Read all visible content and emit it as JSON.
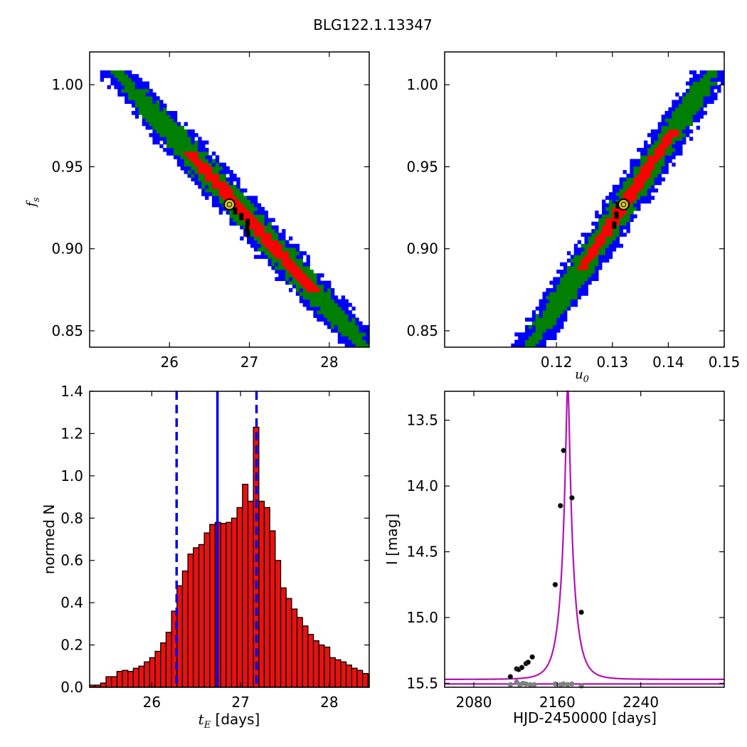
{
  "title": "BLG122.1.13347",
  "colors": {
    "sigma3": "#0000ff",
    "sigma2": "#007f00",
    "sigma1": "#ff0000",
    "accepted": "#000000",
    "best_marker_face": "#d4c22b",
    "hist_bar": "#e8110f",
    "hist_lines": "#0000ee",
    "model_curve": "#b412b4",
    "data_points": "#000000",
    "residuals": "#808080"
  },
  "chart_data": [
    {
      "id": "tE_vs_fs",
      "type": "heatmap",
      "xlim": [
        25.0,
        28.5
      ],
      "ylim": [
        0.84,
        1.02
      ],
      "xticks": [
        "26",
        "27",
        "28"
      ],
      "xtick_values": [
        26,
        27,
        28
      ],
      "yticks": [
        "0.85",
        "0.90",
        "0.95",
        "1.00"
      ],
      "ytick_values": [
        0.85,
        0.9,
        0.95,
        1.0
      ],
      "ylabel": "f_s",
      "ylabel_main": "f",
      "ylabel_sub": "s",
      "xlabel": "",
      "contours": {
        "levels": [
          "3-sigma",
          "2-sigma",
          "1-sigma"
        ],
        "center": [
          26.82,
          0.924
        ],
        "axis_start": [
          25.4,
          1.005
        ],
        "axis_end": [
          28.4,
          0.842
        ],
        "widths_x": [
          0.28,
          0.19,
          0.09
        ]
      },
      "best_fit": [
        26.75,
        0.927
      ]
    },
    {
      "id": "u0_vs_fs",
      "type": "heatmap",
      "xlim": [
        0.1,
        0.15
      ],
      "ylim": [
        0.84,
        1.02
      ],
      "xticks": [
        "0.12",
        "0.13",
        "0.14",
        "0.15"
      ],
      "xtick_values": [
        0.12,
        0.13,
        0.14,
        0.15
      ],
      "yticks": [
        "0.85",
        "0.90",
        "0.95",
        "1.00"
      ],
      "ytick_values": [
        0.85,
        0.9,
        0.95,
        1.0
      ],
      "xlabel": "u_0",
      "xlabel_main": "u",
      "xlabel_sub": "0",
      "contours": {
        "levels": [
          "3-sigma",
          "2-sigma",
          "1-sigma"
        ],
        "axis_start": [
          0.1155,
          0.842
        ],
        "axis_end": [
          0.1475,
          1.006
        ],
        "widths_x": [
          0.0036,
          0.0024,
          0.0011
        ]
      },
      "best_fit": [
        0.132,
        0.927
      ]
    },
    {
      "id": "tE_histogram",
      "type": "bar",
      "xlim": [
        25.3,
        28.45
      ],
      "ylim": [
        0.0,
        1.4
      ],
      "xticks": [
        "26",
        "27",
        "28"
      ],
      "xtick_values": [
        26,
        27,
        28
      ],
      "yticks": [
        "0.0",
        "0.2",
        "0.4",
        "0.6",
        "0.8",
        "1.0",
        "1.2",
        "1.4"
      ],
      "ytick_values": [
        0.0,
        0.2,
        0.4,
        0.6,
        0.8,
        1.0,
        1.2,
        1.4
      ],
      "xlabel_main": "t",
      "xlabel_sub": "E",
      "xlabel_rest": " [days]",
      "ylabel": "normed N",
      "bin_start": 25.3,
      "bin_width": 0.0615,
      "values": [
        0.01,
        0.01,
        0.02,
        0.05,
        0.05,
        0.075,
        0.08,
        0.075,
        0.09,
        0.1,
        0.12,
        0.14,
        0.17,
        0.21,
        0.26,
        0.36,
        0.48,
        0.55,
        0.63,
        0.66,
        0.675,
        0.73,
        0.77,
        0.78,
        0.775,
        0.78,
        0.8,
        0.85,
        0.96,
        0.88,
        1.23,
        0.88,
        0.85,
        0.74,
        0.6,
        0.47,
        0.42,
        0.37,
        0.33,
        0.29,
        0.25,
        0.22,
        0.2,
        0.19,
        0.14,
        0.13,
        0.12,
        0.105,
        0.09,
        0.08,
        0.065,
        0.06,
        0.06,
        0.055,
        0.055,
        0.05,
        0.04,
        0.04,
        0.035,
        0.03,
        0.02
      ],
      "median": 26.74,
      "lower": 26.28,
      "upper": 27.18
    },
    {
      "id": "light_curve",
      "type": "scatter",
      "xlim": [
        2052,
        2320
      ],
      "ylim": [
        15.53,
        13.28
      ],
      "xticks": [
        "2080",
        "2160",
        "2240"
      ],
      "xtick_values": [
        2080,
        2160,
        2240
      ],
      "yticks": [
        "13.5",
        "14.0",
        "14.5",
        "15.0",
        "15.5"
      ],
      "ytick_values": [
        13.5,
        14.0,
        14.5,
        15.0,
        15.5
      ],
      "xlabel": "HJD-2450000 [days]",
      "ylabel": "I [mag]",
      "model": {
        "t0": 2170.0,
        "tE": 26.74,
        "u0": 0.132,
        "baseline": 15.47
      },
      "points": [
        [
          2115,
          15.45
        ],
        [
          2121,
          15.39
        ],
        [
          2123,
          15.395
        ],
        [
          2126,
          15.38
        ],
        [
          2130,
          15.35
        ],
        [
          2132,
          15.34
        ],
        [
          2136,
          15.3
        ],
        [
          2158,
          14.75
        ],
        [
          2163,
          14.15
        ],
        [
          2166,
          13.73
        ],
        [
          2174,
          14.09
        ],
        [
          2183,
          14.96
        ]
      ],
      "residual_level": 15.505,
      "residuals": [
        [
          2115,
          15.51
        ],
        [
          2121,
          15.49
        ],
        [
          2124,
          15.51
        ],
        [
          2127,
          15.5
        ],
        [
          2130,
          15.505
        ],
        [
          2134,
          15.51
        ],
        [
          2138,
          15.51
        ],
        [
          2158,
          15.505
        ],
        [
          2163,
          15.51
        ],
        [
          2166,
          15.505
        ],
        [
          2170,
          15.51
        ],
        [
          2174,
          15.505
        ],
        [
          2183,
          15.52
        ]
      ]
    }
  ]
}
